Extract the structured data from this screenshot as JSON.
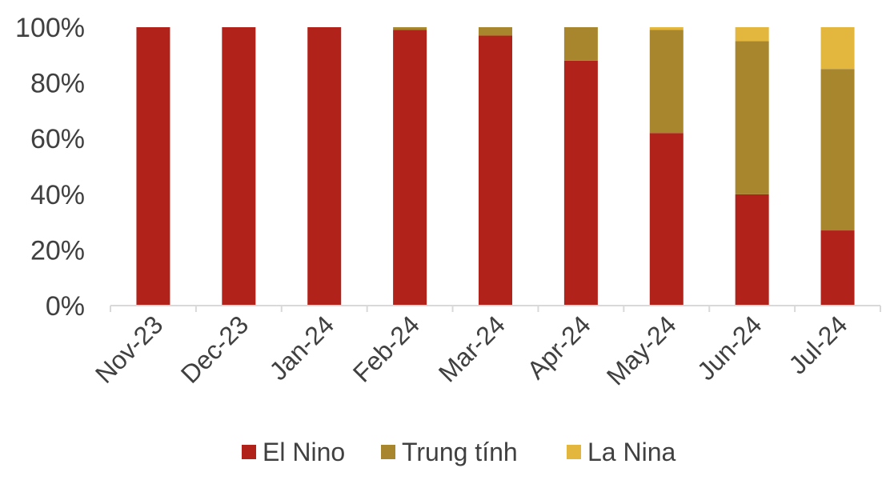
{
  "chart_data": {
    "type": "bar",
    "stacked": true,
    "categories": [
      "Nov-23",
      "Dec-23",
      "Jan-24",
      "Feb-24",
      "Mar-24",
      "Apr-24",
      "May-24",
      "Jun-24",
      "Jul-24"
    ],
    "series": [
      {
        "name": "El Nino",
        "color": "#b1221a",
        "values": [
          100,
          100,
          100,
          99,
          97,
          88,
          62,
          40,
          27
        ]
      },
      {
        "name": "Trung tính",
        "color": "#a8862e",
        "values": [
          0,
          0,
          0,
          1,
          3,
          12,
          37,
          55,
          58
        ]
      },
      {
        "name": "La Nina",
        "color": "#e3b63e",
        "values": [
          0,
          0,
          0,
          0,
          0,
          0,
          1,
          5,
          15
        ]
      }
    ],
    "yticks": [
      "0%",
      "20%",
      "40%",
      "60%",
      "80%",
      "100%"
    ],
    "ylim": [
      0,
      100
    ],
    "xlabel": "",
    "ylabel": "",
    "grid": false,
    "legend_position": "bottom"
  }
}
